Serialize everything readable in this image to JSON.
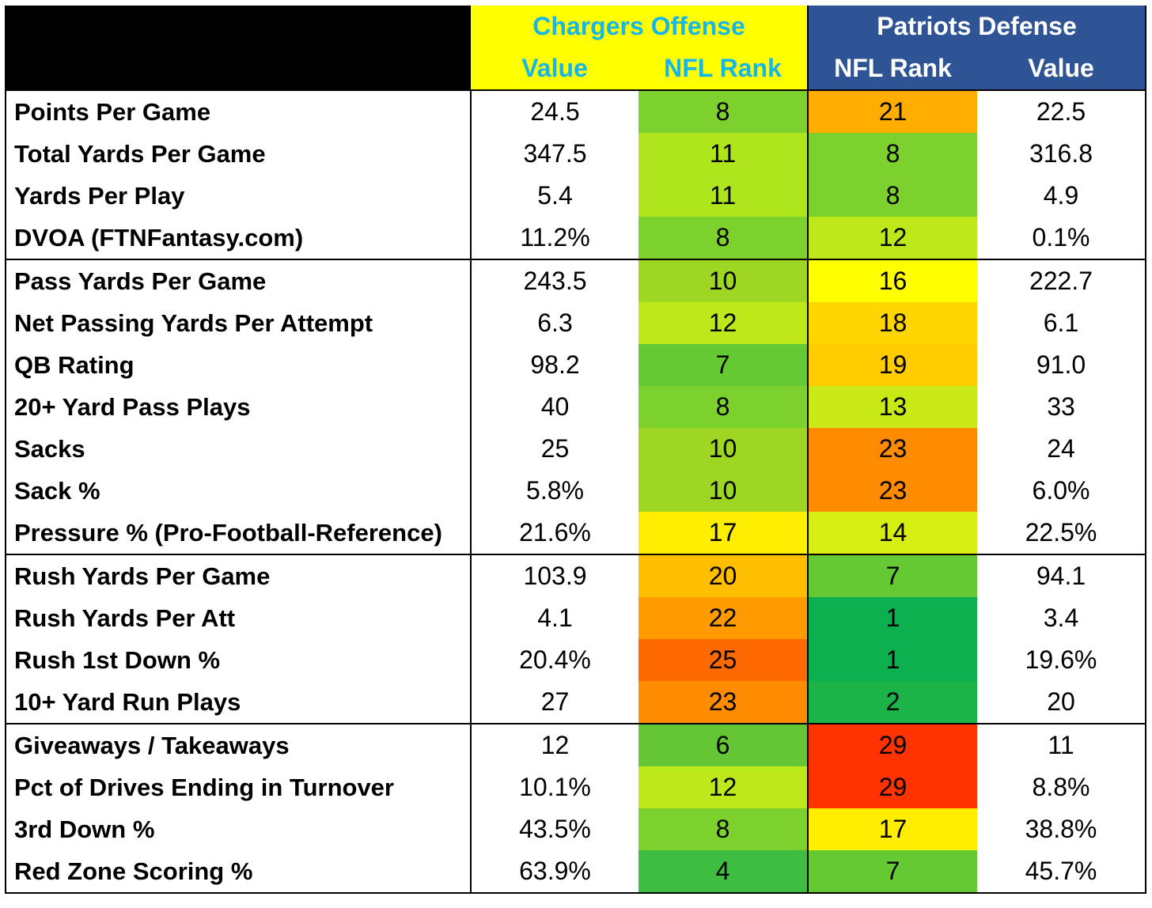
{
  "header": {
    "offense_group": "Chargers Offense",
    "defense_group": "Patriots Defense",
    "off_value": "Value",
    "off_rank": "NFL Rank",
    "def_rank": "NFL Rank",
    "def_value": "Value"
  },
  "rank_colors": {
    "1": "#0cb04f",
    "2": "#1bb449",
    "4": "#3ebd40",
    "6": "#64c635",
    "7": "#65c934",
    "8": "#7dd12c",
    "10": "#9dd723",
    "11": "#aee51d",
    "12": "#bde81a",
    "13": "#c9ea17",
    "14": "#d7ee12",
    "16": "#ffff00",
    "17": "#ffee00",
    "18": "#ffd600",
    "19": "#ffcc00",
    "20": "#ffbe00",
    "21": "#ffad00",
    "22": "#ff9a00",
    "23": "#ff8c00",
    "25": "#ff6a00",
    "29": "#ff3300"
  },
  "sections": [
    {
      "rows": [
        {
          "label": "Points Per Game",
          "off_value": "24.5",
          "off_rank": "8",
          "def_rank": "21",
          "def_value": "22.5"
        },
        {
          "label": "Total Yards Per Game",
          "off_value": "347.5",
          "off_rank": "11",
          "def_rank": "8",
          "def_value": "316.8"
        },
        {
          "label": "Yards Per Play",
          "off_value": "5.4",
          "off_rank": "11",
          "def_rank": "8",
          "def_value": "4.9"
        },
        {
          "label": "DVOA (FTNFantasy.com)",
          "off_value": "11.2%",
          "off_rank": "8",
          "def_rank": "12",
          "def_value": "0.1%"
        }
      ]
    },
    {
      "rows": [
        {
          "label": "Pass Yards Per Game",
          "off_value": "243.5",
          "off_rank": "10",
          "def_rank": "16",
          "def_value": "222.7"
        },
        {
          "label": "Net Passing Yards Per Attempt",
          "off_value": "6.3",
          "off_rank": "12",
          "def_rank": "18",
          "def_value": "6.1"
        },
        {
          "label": "QB Rating",
          "off_value": "98.2",
          "off_rank": "7",
          "def_rank": "19",
          "def_value": "91.0"
        },
        {
          "label": "20+ Yard Pass Plays",
          "off_value": "40",
          "off_rank": "8",
          "def_rank": "13",
          "def_value": "33"
        },
        {
          "label": "Sacks",
          "off_value": "25",
          "off_rank": "10",
          "def_rank": "23",
          "def_value": "24"
        },
        {
          "label": "Sack %",
          "off_value": "5.8%",
          "off_rank": "10",
          "def_rank": "23",
          "def_value": "6.0%"
        },
        {
          "label": "Pressure % (Pro-Football-Reference)",
          "off_value": "21.6%",
          "off_rank": "17",
          "def_rank": "14",
          "def_value": "22.5%"
        }
      ]
    },
    {
      "rows": [
        {
          "label": "Rush Yards Per Game",
          "off_value": "103.9",
          "off_rank": "20",
          "def_rank": "7",
          "def_value": "94.1"
        },
        {
          "label": "Rush Yards Per Att",
          "off_value": "4.1",
          "off_rank": "22",
          "def_rank": "1",
          "def_value": "3.4"
        },
        {
          "label": "Rush 1st Down %",
          "off_value": "20.4%",
          "off_rank": "25",
          "def_rank": "1",
          "def_value": "19.6%"
        },
        {
          "label": "10+ Yard Run Plays",
          "off_value": "27",
          "off_rank": "23",
          "def_rank": "2",
          "def_value": "20"
        }
      ]
    },
    {
      "rows": [
        {
          "label": "Giveaways / Takeaways",
          "off_value": "12",
          "off_rank": "6",
          "def_rank": "29",
          "def_value": "11"
        },
        {
          "label": "Pct of Drives Ending in Turnover",
          "off_value": "10.1%",
          "off_rank": "12",
          "def_rank": "29",
          "def_value": "8.8%"
        },
        {
          "label": "3rd Down %",
          "off_value": "43.5%",
          "off_rank": "8",
          "def_rank": "17",
          "def_value": "38.8%"
        },
        {
          "label": "Red Zone Scoring %",
          "off_value": "63.9%",
          "off_rank": "4",
          "def_rank": "7",
          "def_value": "45.7%"
        }
      ]
    }
  ]
}
